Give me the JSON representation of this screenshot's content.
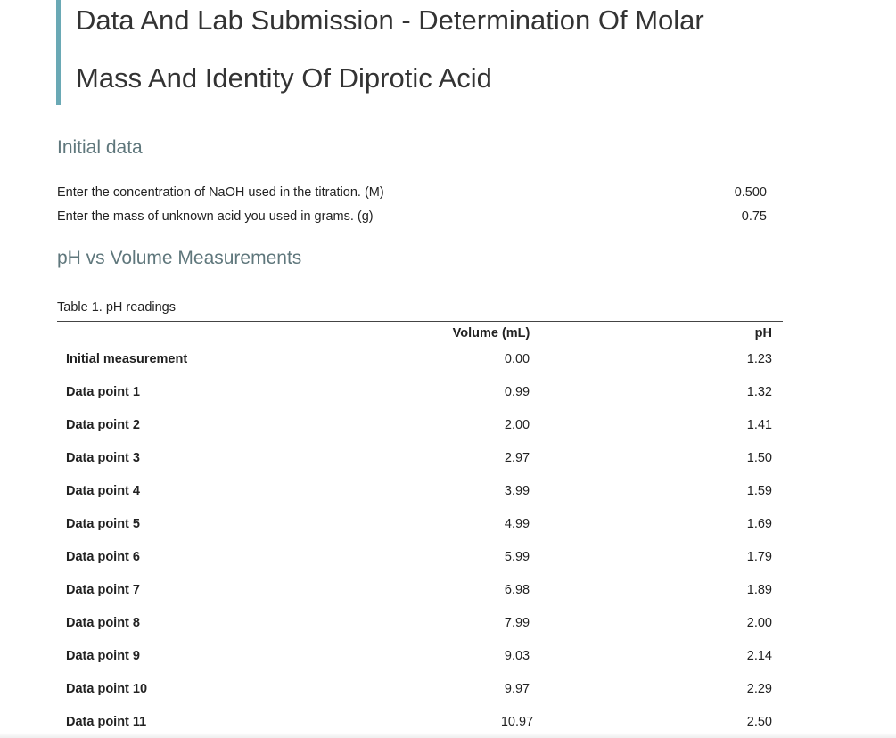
{
  "header": {
    "title": "Data And Lab Submission - Determination Of Molar Mass And Identity Of Diprotic Acid"
  },
  "initial_data": {
    "heading": "Initial data",
    "rows": [
      {
        "label": "Enter the concentration of NaOH used in the titration. (M)",
        "value": "0.500"
      },
      {
        "label": "Enter the mass of unknown acid you used in grams. (g)",
        "value": "0.75"
      }
    ]
  },
  "measurements": {
    "heading": "pH vs Volume Measurements",
    "table": {
      "caption": "Table 1. pH readings",
      "columns": [
        "Volume (mL)",
        "pH"
      ],
      "rows": [
        {
          "label": "Initial measurement",
          "volume": "0.00",
          "ph": "1.23"
        },
        {
          "label": "Data point 1",
          "volume": "0.99",
          "ph": "1.32"
        },
        {
          "label": "Data point 2",
          "volume": "2.00",
          "ph": "1.41"
        },
        {
          "label": "Data point 3",
          "volume": "2.97",
          "ph": "1.50"
        },
        {
          "label": "Data point 4",
          "volume": "3.99",
          "ph": "1.59"
        },
        {
          "label": "Data point 5",
          "volume": "4.99",
          "ph": "1.69"
        },
        {
          "label": "Data point 6",
          "volume": "5.99",
          "ph": "1.79"
        },
        {
          "label": "Data point 7",
          "volume": "6.98",
          "ph": "1.89"
        },
        {
          "label": "Data point 8",
          "volume": "7.99",
          "ph": "2.00"
        },
        {
          "label": "Data point 9",
          "volume": "9.03",
          "ph": "2.14"
        },
        {
          "label": "Data point 10",
          "volume": "9.97",
          "ph": "2.29"
        },
        {
          "label": "Data point 11",
          "volume": "10.97",
          "ph": "2.50"
        }
      ]
    }
  }
}
